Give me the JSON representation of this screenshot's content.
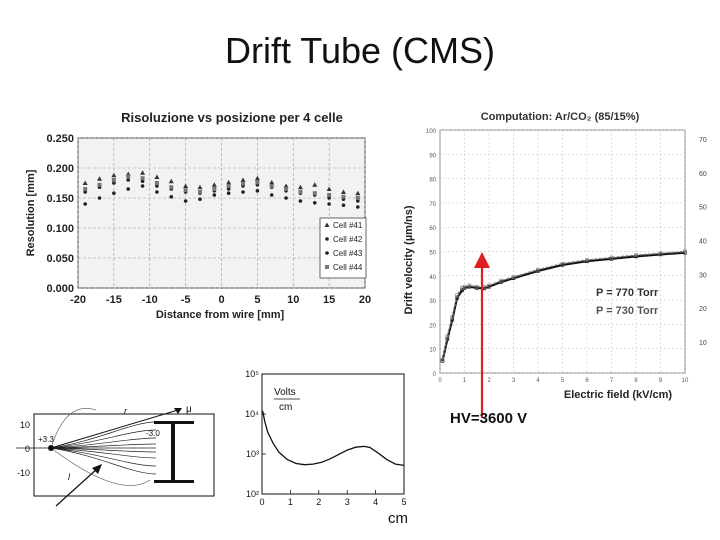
{
  "slide": {
    "title": "Drift Tube (CMS)",
    "hv_label": "HV=3600 V",
    "cm_label": "cm",
    "arrow_color": "#e02020"
  },
  "chart_data": [
    {
      "type": "scatter",
      "title": "Risoluzione vs posizione per 4 celle",
      "xlabel": "Distance from wire [mm]",
      "ylabel": "Resolution [mm]",
      "xlim": [
        -20,
        20
      ],
      "ylim": [
        0.0,
        0.25
      ],
      "xticks": [
        "-20",
        "-15",
        "-10",
        "-5",
        "0",
        "5",
        "10",
        "15",
        "20"
      ],
      "yticks": [
        "0.000",
        "0.050",
        "0.100",
        "0.150",
        "0.200",
        "0.250"
      ],
      "grid": true,
      "legend_position": "bottom-right",
      "series": [
        {
          "name": "Cell #41",
          "marker": "triangle",
          "x": [
            -19,
            -17,
            -15,
            -13,
            -11,
            -9,
            -7,
            -5,
            -3,
            -1,
            1,
            3,
            5,
            7,
            9,
            11,
            13,
            15,
            17,
            19
          ],
          "y": [
            0.175,
            0.182,
            0.188,
            0.19,
            0.192,
            0.185,
            0.178,
            0.17,
            0.168,
            0.172,
            0.176,
            0.18,
            0.183,
            0.176,
            0.17,
            0.168,
            0.172,
            0.165,
            0.16,
            0.158
          ]
        },
        {
          "name": "Cell #42",
          "marker": "dot",
          "x": [
            -19,
            -17,
            -15,
            -13,
            -11,
            -9,
            -7,
            -5,
            -3,
            -1,
            1,
            3,
            5,
            7,
            9,
            11,
            13,
            15,
            17,
            19
          ],
          "y": [
            0.16,
            0.168,
            0.175,
            0.18,
            0.178,
            0.17,
            0.165,
            0.16,
            0.158,
            0.162,
            0.165,
            0.17,
            0.172,
            0.168,
            0.162,
            0.158,
            0.155,
            0.15,
            0.148,
            0.145
          ]
        },
        {
          "name": "Cell #43",
          "marker": "dot",
          "x": [
            -19,
            -17,
            -15,
            -13,
            -11,
            -9,
            -7,
            -5,
            -3,
            -1,
            1,
            3,
            5,
            7,
            9,
            11,
            13,
            15,
            17,
            19
          ],
          "y": [
            0.14,
            0.15,
            0.158,
            0.165,
            0.17,
            0.16,
            0.152,
            0.145,
            0.148,
            0.155,
            0.158,
            0.16,
            0.162,
            0.155,
            0.15,
            0.145,
            0.142,
            0.14,
            0.138,
            0.135
          ]
        },
        {
          "name": "Cell #44",
          "marker": "square",
          "x": [
            -19,
            -17,
            -15,
            -13,
            -11,
            -9,
            -7,
            -5,
            -3,
            -1,
            1,
            3,
            5,
            7,
            9,
            11,
            13,
            15,
            17,
            19
          ],
          "y": [
            0.165,
            0.172,
            0.18,
            0.186,
            0.183,
            0.175,
            0.168,
            0.163,
            0.16,
            0.165,
            0.17,
            0.174,
            0.176,
            0.17,
            0.165,
            0.16,
            0.158,
            0.155,
            0.152,
            0.15
          ]
        }
      ]
    },
    {
      "type": "line",
      "title": "Computation: Ar/CO₂ (85/15%)",
      "xlabel": "Electric field (kV/cm)",
      "ylabel": "Drift velocity (µm/ns)",
      "xlim": [
        0,
        10
      ],
      "ylim": [
        0,
        100
      ],
      "xticks": [
        "0",
        "1",
        "2",
        "3",
        "4",
        "5",
        "6",
        "7",
        "8",
        "9",
        "10"
      ],
      "yticks": [
        "0",
        "10",
        "20",
        "30",
        "40",
        "50",
        "60",
        "70",
        "80",
        "90",
        "100"
      ],
      "right_ticks": [
        "10",
        "20",
        "30",
        "40",
        "50",
        "60",
        "70"
      ],
      "grid": true,
      "annotations": [
        "P = 770 Torr",
        "P = 730 Torr"
      ],
      "series": [
        {
          "name": "P = 770 Torr",
          "x": [
            0.1,
            0.3,
            0.5,
            0.7,
            0.9,
            1.0,
            1.2,
            1.5,
            1.8,
            2.0,
            2.5,
            3.0,
            4.0,
            5.0,
            6.0,
            7.0,
            8.0,
            9.0,
            10.0
          ],
          "y": [
            5,
            14,
            22,
            31,
            34,
            35,
            35.5,
            35,
            34.8,
            35.5,
            37.5,
            39,
            42,
            44.5,
            46,
            47,
            48,
            48.8,
            49.5
          ]
        },
        {
          "name": "P = 730 Torr",
          "x": [
            0.1,
            0.3,
            0.5,
            0.7,
            0.9,
            1.0,
            1.2,
            1.5,
            1.8,
            2.0,
            2.5,
            3.0,
            4.0,
            5.0,
            6.0,
            7.0,
            8.0,
            9.0,
            10.0
          ],
          "y": [
            5.5,
            15,
            23,
            32,
            35,
            35.5,
            36,
            35.5,
            35.3,
            36,
            38,
            39.5,
            42.5,
            45,
            46.5,
            47.5,
            48.5,
            49.2,
            50
          ]
        }
      ]
    },
    {
      "type": "line",
      "title": "",
      "xlabel": "",
      "ylabel": "",
      "y_unit_label": [
        "Volts",
        "cm"
      ],
      "xlim": [
        0,
        5
      ],
      "ylim_log10": [
        2,
        5
      ],
      "yscale": "log",
      "xticks": [
        "0",
        "1",
        "2",
        "3",
        "4",
        "5"
      ],
      "yticks": [
        "10²",
        "10³",
        "10⁴",
        "10⁵"
      ],
      "series": [
        {
          "x": [
            0.02,
            0.1,
            0.2,
            0.4,
            0.6,
            0.9,
            1.2,
            1.5,
            1.8,
            2.1,
            2.4,
            2.7,
            3.0,
            3.3,
            3.6,
            3.8,
            4.1,
            4.4,
            4.7,
            5.0
          ],
          "y": [
            12000,
            6500,
            3500,
            1800,
            1100,
            720,
            580,
            540,
            560,
            620,
            760,
            980,
            1250,
            1480,
            1550,
            1450,
            1050,
            720,
            560,
            520
          ]
        }
      ]
    },
    {
      "type": "line",
      "title": "",
      "xlabel": "",
      "ylabel": "",
      "ylim": [
        -10,
        10
      ],
      "yticks": [
        "10",
        "0",
        "-10"
      ],
      "annotations": [
        "+3.3",
        "-3.0",
        "r",
        "μ",
        "l"
      ]
    }
  ]
}
